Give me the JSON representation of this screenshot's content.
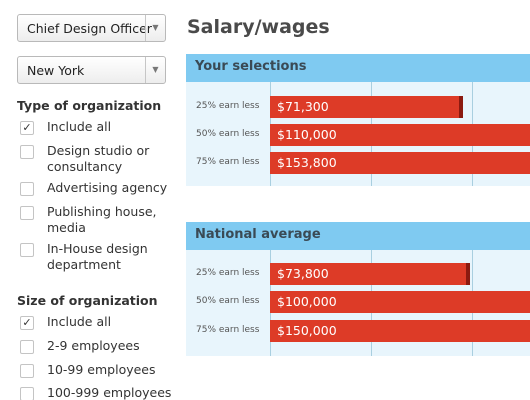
{
  "filters": {
    "job_title": {
      "value": "Chief Design Officer"
    },
    "location": {
      "value": "New York"
    }
  },
  "organization_type": {
    "title": "Type of organization",
    "options": [
      {
        "label": "Include all",
        "checked": true
      },
      {
        "label": "Design studio or consultancy",
        "checked": false
      },
      {
        "label": "Advertising agency",
        "checked": false
      },
      {
        "label": "Publishing house, media",
        "checked": false
      },
      {
        "label": "In-House design department",
        "checked": false
      }
    ]
  },
  "organization_size": {
    "title": "Size of organization",
    "options": [
      {
        "label": "Include all",
        "checked": true
      },
      {
        "label": "2-9 employees",
        "checked": false
      },
      {
        "label": "10-99 employees",
        "checked": false
      },
      {
        "label": "100-999 employees",
        "checked": false
      }
    ]
  },
  "main": {
    "heading": "Salary/wages",
    "checkmark": "✓",
    "dropdown_arrow": "▼",
    "panels": [
      {
        "title": "Your selections",
        "rows": [
          {
            "label": "25% earn less",
            "value": "$71,300",
            "amount": 71300
          },
          {
            "label": "50% earn less",
            "value": "$110,000",
            "amount": 110000
          },
          {
            "label": "75% earn less",
            "value": "$153,800",
            "amount": 153800
          }
        ]
      },
      {
        "title": "National average",
        "rows": [
          {
            "label": "25% earn less",
            "value": "$73,800",
            "amount": 73800
          },
          {
            "label": "50% earn less",
            "value": "$100,000",
            "amount": 100000
          },
          {
            "label": "75% earn less",
            "value": "$150,000",
            "amount": 150000
          }
        ]
      }
    ]
  }
}
